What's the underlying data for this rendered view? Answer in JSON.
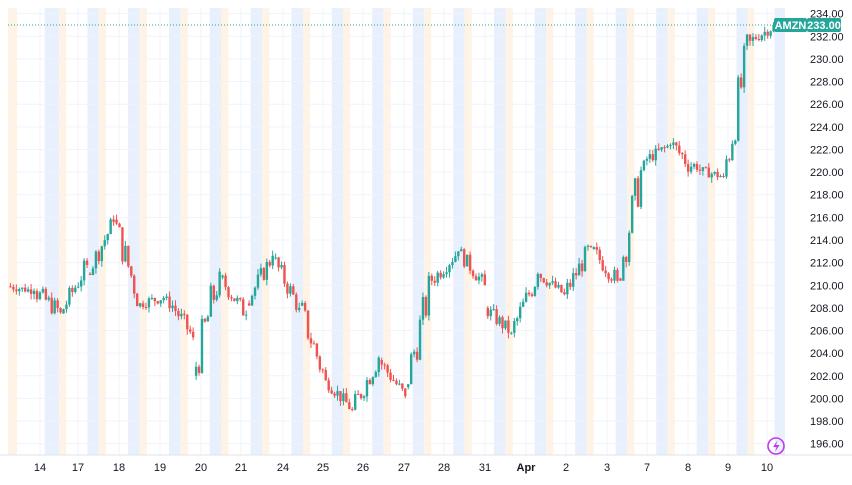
{
  "chart_data": {
    "type": "candlestick",
    "symbol": "AMZN",
    "last_price": "233.00",
    "last_price_value": 233.0,
    "ylim": [
      195.0,
      234.5
    ],
    "y_ticks": [
      "234.00",
      "232.00",
      "230.00",
      "228.00",
      "226.00",
      "224.00",
      "222.00",
      "220.00",
      "218.00",
      "216.00",
      "214.00",
      "212.00",
      "210.00",
      "208.00",
      "206.00",
      "204.00",
      "202.00",
      "200.00",
      "198.00",
      "196.00"
    ],
    "x_ticks": [
      "14",
      "17",
      "18",
      "19",
      "20",
      "21",
      "24",
      "25",
      "26",
      "27",
      "28",
      "31",
      "Apr",
      "2",
      "3",
      "7",
      "8",
      "9",
      "10"
    ],
    "grid": true,
    "session_bands": true,
    "colors": {
      "up": "#26a69a",
      "down": "#ef5350",
      "price_tag": "#26a69a",
      "price_line": "#26a69a",
      "premarket_band": "#fff3e6",
      "afterhours_band": "#e8f0fe",
      "axis_text": "#131722",
      "grid": "#f0f3fa"
    },
    "sessions": [
      {
        "date": "Mar 13",
        "open": 209.9,
        "close": 209.5,
        "high": 210.6,
        "low": 208.6
      },
      {
        "date": "Mar 14",
        "open": 209.5,
        "close": 207.6,
        "high": 211.2,
        "low": 206.4
      },
      {
        "date": "Mar 17",
        "open": 207.5,
        "close": 211.8,
        "high": 212.4,
        "low": 207.2
      },
      {
        "date": "Mar 18",
        "open": 211.0,
        "close": 215.6,
        "high": 216.2,
        "low": 210.9
      },
      {
        "date": "Mar 19",
        "open": 215.8,
        "close": 208.4,
        "high": 216.4,
        "low": 208.0
      },
      {
        "date": "Mar 20",
        "open": 208.4,
        "close": 209.0,
        "high": 209.4,
        "low": 206.6
      },
      {
        "date": "Mar 21",
        "open": 209.0,
        "close": 205.4,
        "high": 209.5,
        "low": 204.8
      },
      {
        "date": "Mar 24",
        "open": 202.0,
        "close": 211.2,
        "high": 213.0,
        "low": 201.6
      },
      {
        "date": "Mar 25",
        "open": 210.7,
        "close": 207.4,
        "high": 211.1,
        "low": 206.6
      },
      {
        "date": "Mar 26",
        "open": 208.4,
        "close": 212.6,
        "high": 213.2,
        "low": 208.2
      },
      {
        "date": "Mar 27",
        "open": 212.4,
        "close": 208.0,
        "high": 212.9,
        "low": 207.6
      },
      {
        "date": "Mar 28",
        "open": 208.2,
        "close": 201.6,
        "high": 208.8,
        "low": 201.2
      },
      {
        "date": "Mar 31",
        "open": 201.6,
        "close": 199.0,
        "high": 202.0,
        "low": 198.6
      },
      {
        "date": "Mar 31b",
        "open": 199.0,
        "close": 203.6,
        "high": 204.2,
        "low": 198.6
      },
      {
        "date": "Apr 1",
        "open": 203.4,
        "close": 200.2,
        "high": 203.6,
        "low": 199.6
      },
      {
        "date": "Apr 1b",
        "open": 201.0,
        "close": 210.4,
        "high": 211.2,
        "low": 200.8
      },
      {
        "date": "Apr 2",
        "open": 210.4,
        "close": 213.0,
        "high": 213.6,
        "low": 209.6
      },
      {
        "date": "Apr 2b",
        "open": 213.0,
        "close": 210.0,
        "high": 213.4,
        "low": 209.4
      },
      {
        "date": "Apr 3",
        "open": 208.0,
        "close": 205.8,
        "high": 208.6,
        "low": 204.8
      },
      {
        "date": "Apr 3b",
        "open": 205.8,
        "close": 211.0,
        "high": 211.8,
        "low": 205.4
      },
      {
        "date": "Apr 4",
        "open": 211.0,
        "close": 209.2,
        "high": 211.4,
        "low": 208.4
      },
      {
        "date": "Apr 7",
        "open": 209.2,
        "close": 213.4,
        "high": 214.2,
        "low": 208.8
      },
      {
        "date": "Apr 7b",
        "open": 213.2,
        "close": 210.4,
        "high": 213.8,
        "low": 209.2
      },
      {
        "date": "Apr 8",
        "open": 210.6,
        "close": 221.0,
        "high": 222.0,
        "low": 210.4
      },
      {
        "date": "Apr 8b",
        "open": 221.0,
        "close": 222.4,
        "high": 223.2,
        "low": 220.2
      },
      {
        "date": "Apr 9",
        "open": 222.4,
        "close": 220.2,
        "high": 226.0,
        "low": 219.6
      },
      {
        "date": "Apr 9b",
        "open": 220.2,
        "close": 219.6,
        "high": 221.4,
        "low": 219.0
      },
      {
        "date": "Apr 9c",
        "open": 219.6,
        "close": 231.6,
        "high": 232.4,
        "low": 219.4
      },
      {
        "date": "Apr 10",
        "open": 231.6,
        "close": 233.0,
        "high": 233.8,
        "low": 231.0
      }
    ]
  },
  "ui": {
    "lightning_icon": "lightning-icon"
  }
}
